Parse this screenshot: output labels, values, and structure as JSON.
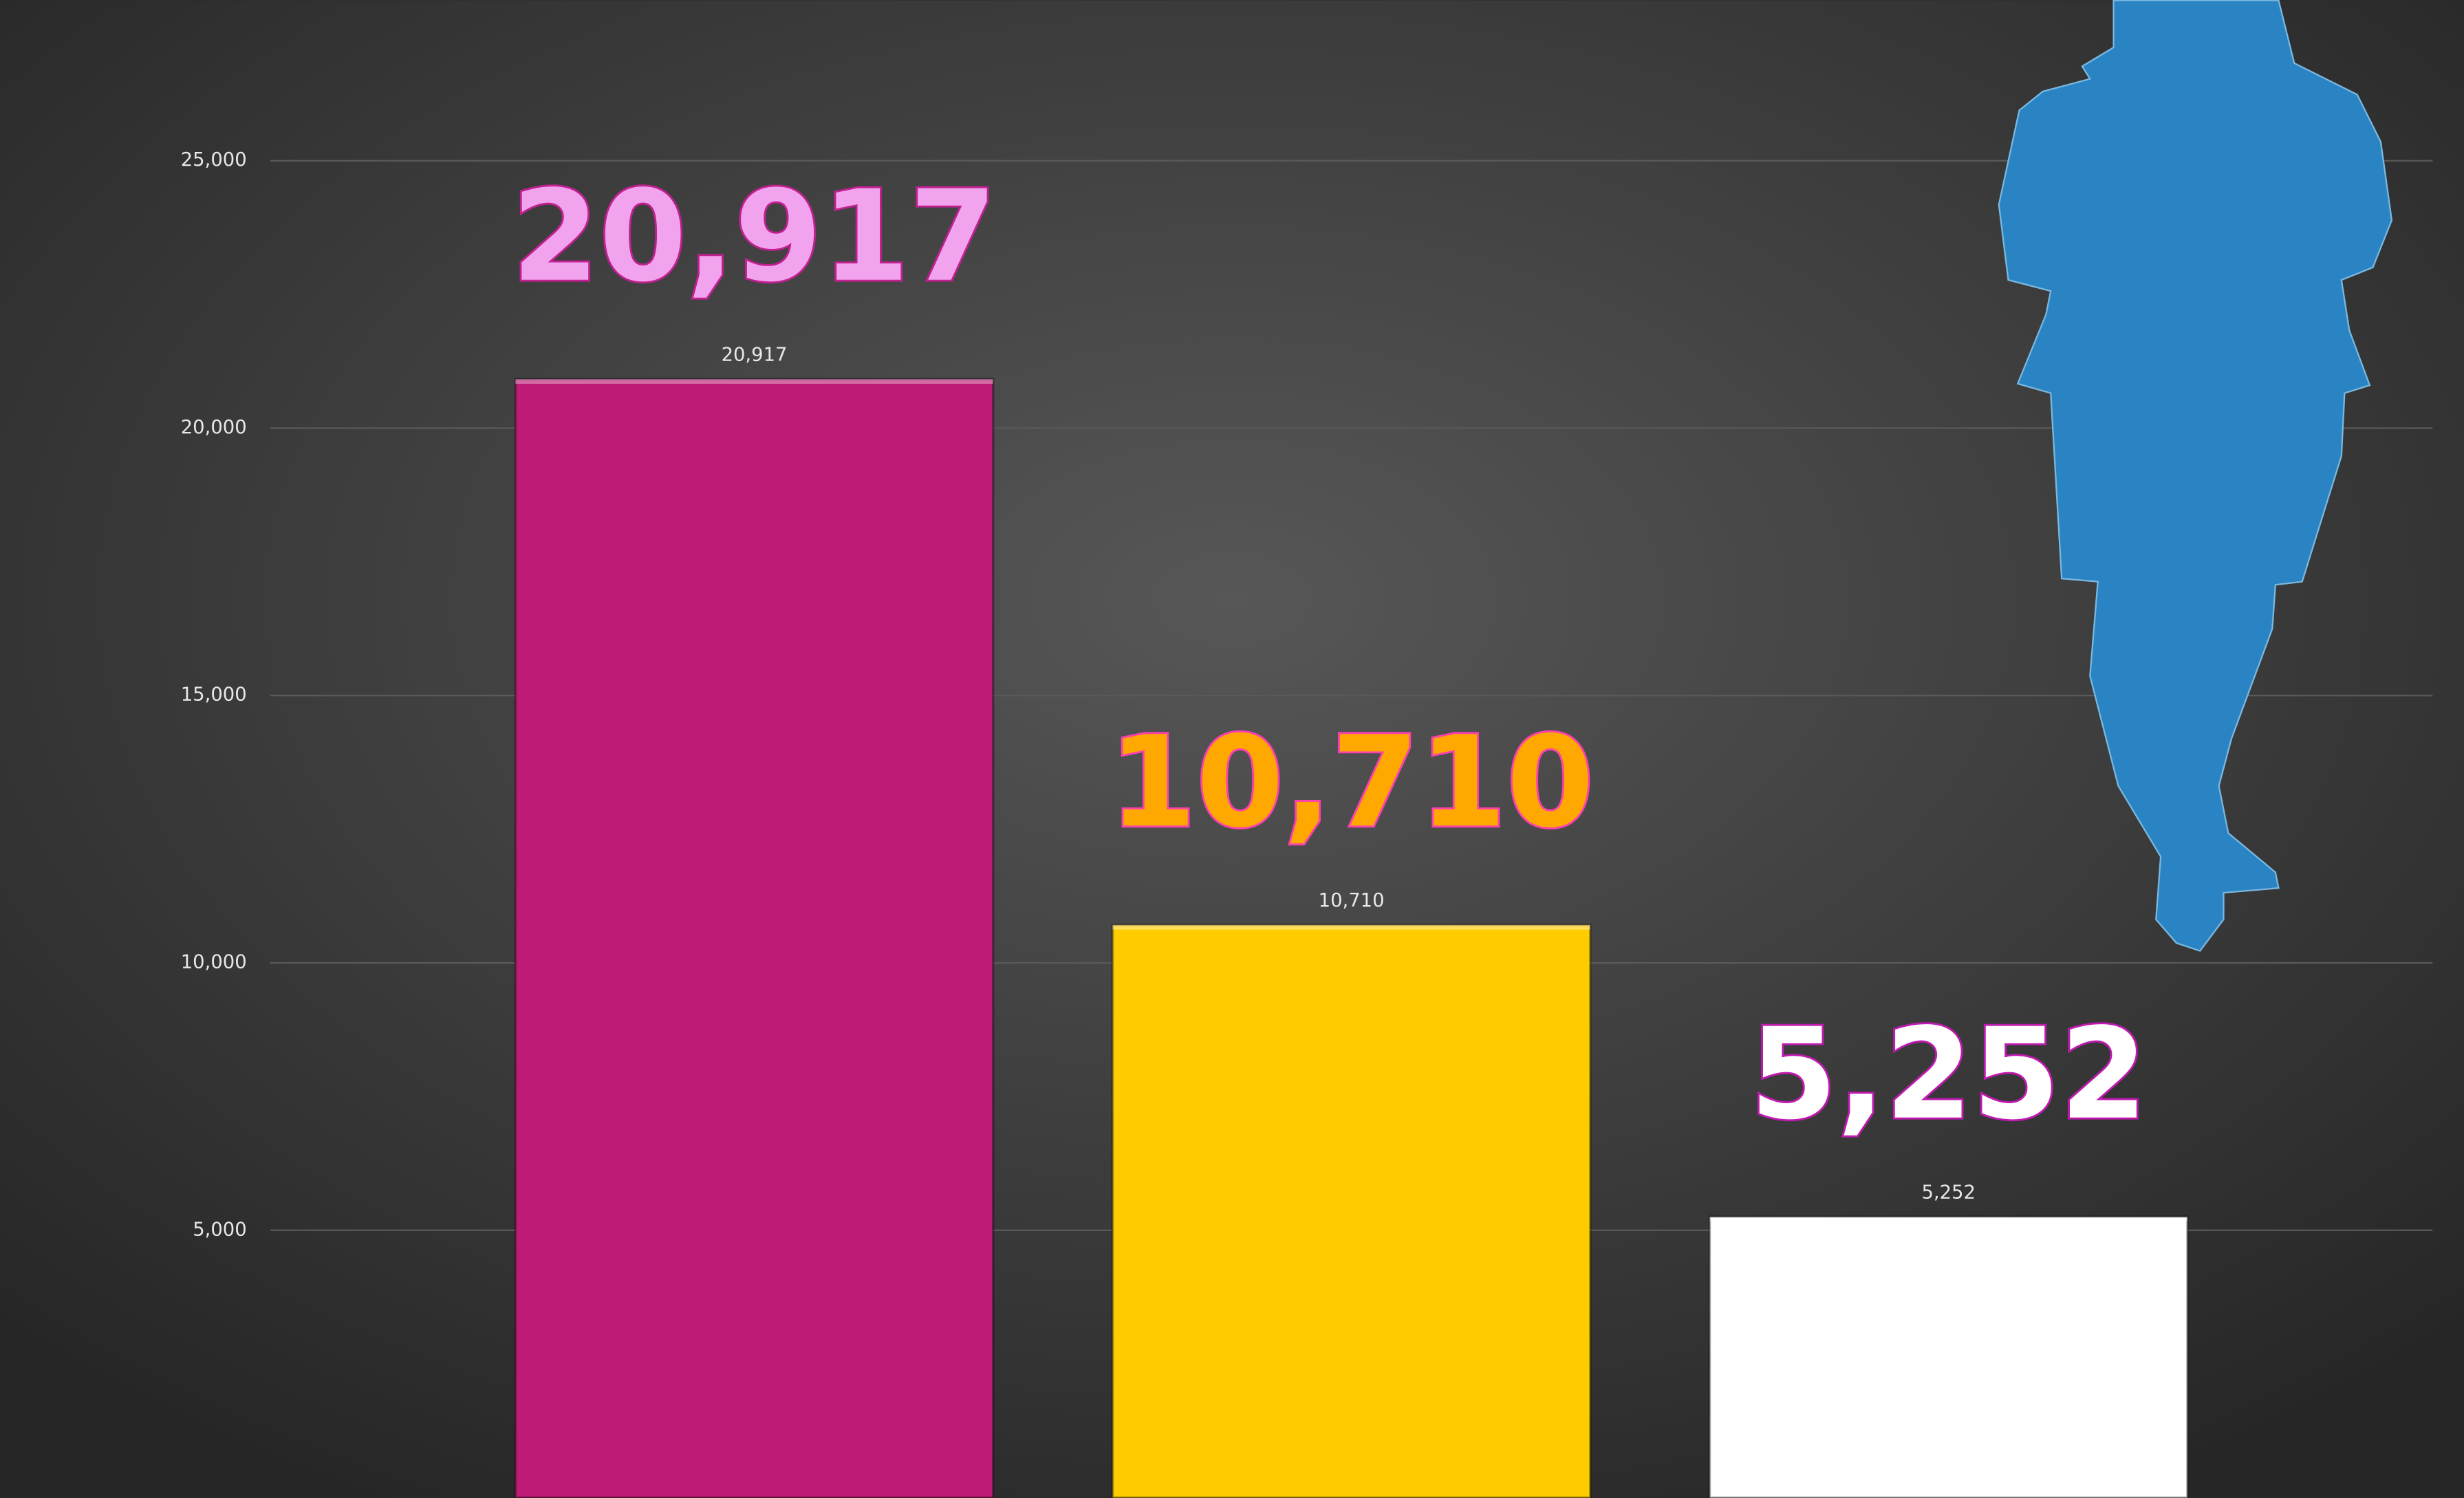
{
  "chart_data": {
    "type": "bar",
    "categories": [
      null,
      null,
      null
    ],
    "values": [
      20917,
      10710,
      5252
    ],
    "value_labels": [
      "20,917",
      "10,710",
      "5,252"
    ],
    "colors": [
      "#be1b76",
      "#ffcc00",
      "#ffffff"
    ],
    "ylim": [
      0,
      28000
    ],
    "yticks": [
      {
        "value": 5000,
        "label": "5,000"
      },
      {
        "value": 10000,
        "label": "10,000"
      },
      {
        "value": 15000,
        "label": "15,000"
      },
      {
        "value": 20000,
        "label": "20,000"
      },
      {
        "value": 25000,
        "label": "25,000"
      }
    ],
    "grid": true
  }
}
